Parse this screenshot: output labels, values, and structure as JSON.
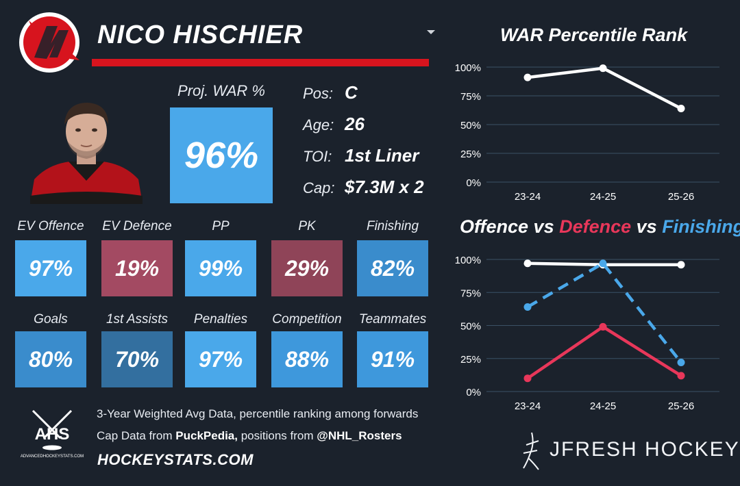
{
  "player": {
    "name": "NICO HISCHIER",
    "proj_war_label": "Proj. WAR %",
    "proj_war_value": "96%",
    "info": [
      {
        "label": "Pos:",
        "value": "C"
      },
      {
        "label": "Age:",
        "value": "26"
      },
      {
        "label": "TOI:",
        "value": "1st Liner"
      },
      {
        "label": "Cap:",
        "value": "$7.3M x 2"
      }
    ]
  },
  "tiles": [
    {
      "label": "EV Offence",
      "value": "97%",
      "color": "#4aa8ea"
    },
    {
      "label": "EV Defence",
      "value": "19%",
      "color": "#a34a62"
    },
    {
      "label": "PP",
      "value": "99%",
      "color": "#4aa8ea"
    },
    {
      "label": "PK",
      "value": "29%",
      "color": "#8f4458"
    },
    {
      "label": "Finishing",
      "value": "82%",
      "color": "#3a8ccc"
    },
    {
      "label": "Goals",
      "value": "80%",
      "color": "#3a8ccc"
    },
    {
      "label": "1st Assists",
      "value": "70%",
      "color": "#336f9f"
    },
    {
      "label": "Penalties",
      "value": "97%",
      "color": "#4aa8ea"
    },
    {
      "label": "Competition",
      "value": "88%",
      "color": "#3e98dc"
    },
    {
      "label": "Teammates",
      "value": "91%",
      "color": "#3e98dc"
    }
  ],
  "footer": {
    "line1": "3-Year Weighted Avg Data, percentile ranking among forwards",
    "line2_prefix": "Cap Data from ",
    "line2_source": "PuckPedia,",
    "line2_middle": " positions from ",
    "line2_handle": "@NHL_Rosters",
    "site": "HOCKEYSTATS.COM",
    "ahs_text": "AHS",
    "ahs_sub": "ADVANCEDHOCKEYSTATS.COM",
    "brand": "JFRESH HOCKEY"
  },
  "chart_data": [
    {
      "type": "line",
      "title": "WAR Percentile Rank",
      "categories": [
        "23-24",
        "24-25",
        "25-26"
      ],
      "series": [
        {
          "values": [
            91,
            99,
            64
          ],
          "color": "#ffffff"
        }
      ],
      "ylim": [
        0,
        100
      ],
      "yticks": [
        "0%",
        "25%",
        "50%",
        "75%",
        "100%"
      ],
      "grid": true
    },
    {
      "type": "line",
      "title_parts": [
        {
          "text": "Offence",
          "color": "#ffffff"
        },
        {
          "text": " vs ",
          "color": "#ffffff"
        },
        {
          "text": "Defence",
          "color": "#e8375a"
        },
        {
          "text": " vs ",
          "color": "#ffffff"
        },
        {
          "text": "Finishing",
          "color": "#4aa8ea"
        }
      ],
      "categories": [
        "23-24",
        "24-25",
        "25-26"
      ],
      "series": [
        {
          "name": "Offence",
          "values": [
            97,
            96,
            96
          ],
          "color": "#ffffff",
          "dash": false
        },
        {
          "name": "Defence",
          "values": [
            10,
            49,
            12
          ],
          "color": "#e8375a",
          "dash": false
        },
        {
          "name": "Finishing",
          "values": [
            64,
            97,
            22
          ],
          "color": "#4aa8ea",
          "dash": true
        }
      ],
      "ylim": [
        0,
        100
      ],
      "yticks": [
        "0%",
        "25%",
        "50%",
        "75%",
        "100%"
      ],
      "grid": true
    }
  ]
}
